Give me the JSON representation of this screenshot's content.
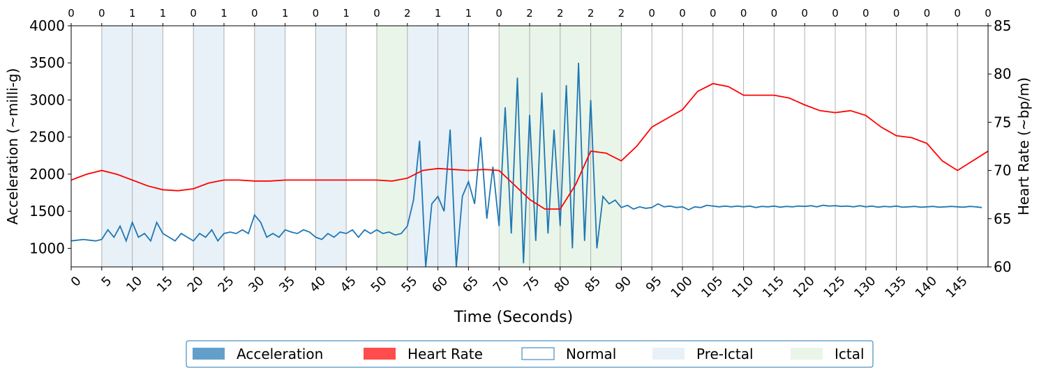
{
  "chart_data": {
    "type": "line",
    "xlabel": "Time (Seconds)",
    "ylabel": "Acceleration (~milli-g)",
    "y2label": "Heart Rate (~bp/m)",
    "xlim": [
      0,
      150
    ],
    "ylim": [
      750,
      4000
    ],
    "y2lim": [
      60,
      85
    ],
    "xticks": [
      0,
      5,
      10,
      15,
      20,
      25,
      30,
      35,
      40,
      45,
      50,
      55,
      60,
      65,
      70,
      75,
      80,
      85,
      90,
      95,
      100,
      105,
      110,
      115,
      120,
      125,
      130,
      135,
      140,
      145
    ],
    "yticks": [
      1000,
      1500,
      2000,
      2500,
      3000,
      3500,
      4000
    ],
    "y2ticks": [
      60,
      65,
      70,
      75,
      80,
      85
    ],
    "x2ticks": [
      {
        "value": 0,
        "label": "0"
      },
      {
        "value": 5,
        "label": "0"
      },
      {
        "value": 10,
        "label": "1"
      },
      {
        "value": 15,
        "label": "1"
      },
      {
        "value": 20,
        "label": "0"
      },
      {
        "value": 25,
        "label": "1"
      },
      {
        "value": 30,
        "label": "0"
      },
      {
        "value": 35,
        "label": "1"
      },
      {
        "value": 40,
        "label": "0"
      },
      {
        "value": 45,
        "label": "1"
      },
      {
        "value": 50,
        "label": "0"
      },
      {
        "value": 55,
        "label": "2"
      },
      {
        "value": 60,
        "label": "1"
      },
      {
        "value": 65,
        "label": "1"
      },
      {
        "value": 70,
        "label": "0"
      },
      {
        "value": 75,
        "label": "2"
      },
      {
        "value": 80,
        "label": "2"
      },
      {
        "value": 85,
        "label": "2"
      },
      {
        "value": 90,
        "label": "2"
      },
      {
        "value": 95,
        "label": "0"
      },
      {
        "value": 100,
        "label": "0"
      },
      {
        "value": 105,
        "label": "0"
      },
      {
        "value": 110,
        "label": "0"
      },
      {
        "value": 115,
        "label": "0"
      },
      {
        "value": 120,
        "label": "0"
      },
      {
        "value": 125,
        "label": "0"
      },
      {
        "value": 130,
        "label": "0"
      },
      {
        "value": 135,
        "label": "0"
      },
      {
        "value": 140,
        "label": "0"
      },
      {
        "value": 145,
        "label": "0"
      },
      {
        "value": 150,
        "label": "0"
      }
    ],
    "grid": true,
    "series": [
      {
        "name": "Acceleration",
        "color": "#1f77b4",
        "alpha": 0.7,
        "x": [
          0,
          1,
          2,
          3,
          4,
          5,
          6,
          7,
          8,
          9,
          10,
          11,
          12,
          13,
          14,
          15,
          16,
          17,
          18,
          19,
          20,
          21,
          22,
          23,
          24,
          25,
          26,
          27,
          28,
          29,
          30,
          31,
          32,
          33,
          34,
          35,
          36,
          37,
          38,
          39,
          40,
          41,
          42,
          43,
          44,
          45,
          46,
          47,
          48,
          49,
          50,
          51,
          52,
          53,
          54,
          55,
          56,
          57,
          58,
          59,
          60,
          61,
          62,
          63,
          64,
          65,
          66,
          67,
          68,
          69,
          70,
          71,
          72,
          73,
          74,
          75,
          76,
          77,
          78,
          79,
          80,
          81,
          82,
          83,
          84,
          85,
          86,
          87,
          88,
          89,
          90,
          91,
          92,
          93,
          94,
          95,
          96,
          97,
          98,
          99,
          100,
          101,
          102,
          103,
          104,
          105,
          106,
          107,
          108,
          109,
          110,
          111,
          112,
          113,
          114,
          115,
          116,
          117,
          118,
          119,
          120,
          121,
          122,
          123,
          124,
          125,
          126,
          127,
          128,
          129,
          130,
          131,
          132,
          133,
          134,
          135,
          136,
          137,
          138,
          139,
          140,
          141,
          142,
          143,
          144,
          145,
          146,
          147,
          148,
          149
        ],
        "values": [
          1100,
          1110,
          1120,
          1110,
          1100,
          1120,
          1250,
          1150,
          1300,
          1100,
          1350,
          1150,
          1200,
          1100,
          1350,
          1200,
          1150,
          1100,
          1200,
          1150,
          1100,
          1200,
          1150,
          1250,
          1100,
          1200,
          1220,
          1200,
          1250,
          1200,
          1450,
          1350,
          1150,
          1200,
          1150,
          1250,
          1220,
          1200,
          1250,
          1220,
          1150,
          1120,
          1200,
          1150,
          1220,
          1200,
          1250,
          1150,
          1250,
          1200,
          1250,
          1200,
          1220,
          1180,
          1200,
          1300,
          1650,
          2450,
          750,
          1600,
          1700,
          1500,
          2600,
          750,
          1700,
          1900,
          1600,
          2500,
          1400,
          2100,
          1300,
          2900,
          1200,
          3300,
          800,
          2800,
          1100,
          3100,
          1200,
          2600,
          1300,
          3200,
          1000,
          3500,
          1100,
          3000,
          1000,
          1700,
          1600,
          1650,
          1550,
          1580,
          1530,
          1560,
          1540,
          1550,
          1600,
          1560,
          1570,
          1550,
          1560,
          1520,
          1560,
          1550,
          1580,
          1570,
          1560,
          1570,
          1560,
          1570,
          1560,
          1570,
          1550,
          1565,
          1560,
          1570,
          1555,
          1565,
          1560,
          1570,
          1565,
          1575,
          1560,
          1580,
          1570,
          1575,
          1565,
          1570,
          1560,
          1575,
          1560,
          1570,
          1555,
          1565,
          1560,
          1570,
          1555,
          1560,
          1565,
          1555,
          1560,
          1565,
          1555,
          1560,
          1565,
          1560,
          1555,
          1565,
          1560,
          1550
        ]
      },
      {
        "name": "Heart Rate",
        "color": "#ff0000",
        "alpha": 0.7,
        "axis": "y2",
        "x": [
          0,
          2.5,
          5,
          7.5,
          10,
          12.5,
          15,
          17.5,
          20,
          22.5,
          25,
          27.5,
          30,
          32.5,
          35,
          37.5,
          40,
          42.5,
          45,
          47.5,
          50,
          52.5,
          55,
          57.5,
          60,
          62.5,
          65,
          67.5,
          70,
          72.5,
          75,
          77.5,
          80,
          82.5,
          85,
          87.5,
          90,
          92.5,
          95,
          97.5,
          100,
          102.5,
          105,
          107.5,
          110,
          112.5,
          115,
          117.5,
          120,
          122.5,
          125,
          127.5,
          130,
          132.5,
          135,
          137.5,
          140,
          142.5,
          145,
          147.5,
          150
        ],
        "values": [
          69,
          69.6,
          70,
          69.6,
          69,
          68.4,
          68,
          67.9,
          68.1,
          68.7,
          69,
          69,
          68.9,
          68.9,
          69,
          69,
          69,
          69,
          69,
          69,
          69,
          68.9,
          69.2,
          70,
          70.2,
          70.1,
          70,
          70.1,
          70,
          68.5,
          67,
          66,
          66,
          68.5,
          72,
          71.8,
          71,
          72.5,
          74.5,
          75.4,
          76.3,
          78.2,
          79,
          78.7,
          77.8,
          77.8,
          77.8,
          77.5,
          76.8,
          76.2,
          76,
          76.2,
          75.7,
          74.5,
          73.6,
          73.4,
          72.8,
          71,
          70,
          71,
          72
        ]
      },
      {
        "name": "Normal",
        "color": "#1f77b4",
        "alpha": 0,
        "spans": [
          [
            0,
            5
          ],
          [
            15,
            20
          ],
          [
            25,
            30
          ],
          [
            35,
            40
          ],
          [
            45,
            50
          ],
          [
            65,
            70
          ],
          [
            90,
            150
          ]
        ]
      },
      {
        "name": "Pre-Ictal",
        "color": "#1f77b4",
        "alpha": 0.1,
        "spans": [
          [
            5,
            15
          ],
          [
            20,
            25
          ],
          [
            30,
            35
          ],
          [
            40,
            45
          ],
          [
            55,
            65
          ]
        ]
      },
      {
        "name": "Ictal",
        "color": "#2ca02c",
        "alpha": 0.1,
        "spans": [
          [
            50,
            55
          ],
          [
            70,
            90
          ]
        ]
      }
    ]
  }
}
